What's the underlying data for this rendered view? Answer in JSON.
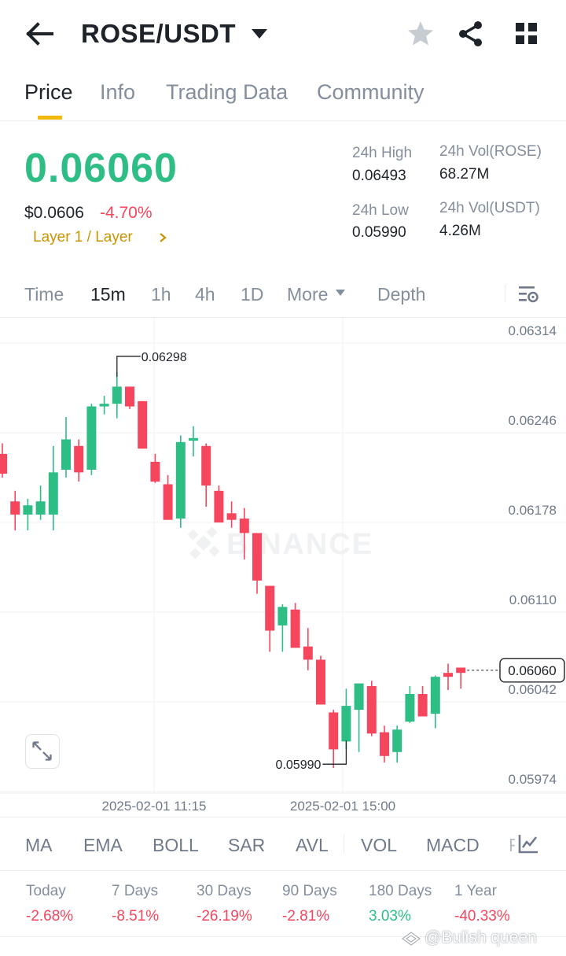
{
  "header": {
    "pair": "ROSE/USDT",
    "icons": [
      "back-arrow-icon",
      "caret-down-icon",
      "star-icon",
      "share-icon",
      "grid-icon"
    ]
  },
  "tabs": [
    "Price",
    "Info",
    "Trading Data",
    "Community"
  ],
  "active_tab": "Price",
  "summary": {
    "last_price": "0.06060",
    "usd_price": "$0.0606",
    "change_pct": "-4.70%",
    "category": "Layer 1 / Layer",
    "high_label": "24h High",
    "high_value": "0.06493",
    "low_label": "24h Low",
    "low_value": "0.05990",
    "vol_base_label": "24h Vol(ROSE)",
    "vol_base_value": "68.27M",
    "vol_quote_label": "24h Vol(USDT)",
    "vol_quote_value": "4.26M"
  },
  "intervals": [
    "Time",
    "15m",
    "1h",
    "4h",
    "1D",
    "More",
    "Depth"
  ],
  "active_interval": "15m",
  "chart": {
    "watermark": "BINANCE",
    "price_labels": [
      "0.06314",
      "0.06246",
      "0.06178",
      "0.06110",
      "0.06042",
      "0.05974"
    ],
    "time_labels": [
      "2025-02-01 11:15",
      "2025-02-01 15:00"
    ],
    "current_price_tag": "0.06060",
    "high_marker": "0.06298",
    "low_marker": "0.05990"
  },
  "chart_data": {
    "type": "candlestick",
    "interval": "15m",
    "y_range": [
      0.0595,
      0.0634
    ],
    "y_ticks": [
      0.06314,
      0.06246,
      0.06178,
      0.0611,
      0.06042,
      0.05974
    ],
    "x_ticks": [
      "2025-02-01 11:15",
      "2025-02-01 15:00"
    ],
    "current_price": 0.0606,
    "annotated_high": 0.06298,
    "annotated_low": 0.0599,
    "candles": [
      {
        "o": 0.06224,
        "h": 0.06232,
        "c": 0.06209,
        "l": 0.06206
      },
      {
        "o": 0.06188,
        "h": 0.06196,
        "c": 0.06178,
        "l": 0.06166
      },
      {
        "o": 0.06178,
        "h": 0.0619,
        "c": 0.06185,
        "l": 0.06166
      },
      {
        "o": 0.06178,
        "h": 0.062,
        "c": 0.06188,
        "l": 0.06174
      },
      {
        "o": 0.06178,
        "h": 0.0623,
        "c": 0.0621,
        "l": 0.06166
      },
      {
        "o": 0.06212,
        "h": 0.06252,
        "c": 0.06235,
        "l": 0.06206
      },
      {
        "o": 0.0623,
        "h": 0.06235,
        "c": 0.0621,
        "l": 0.06203
      },
      {
        "o": 0.06212,
        "h": 0.06262,
        "c": 0.0626,
        "l": 0.06208
      },
      {
        "o": 0.0626,
        "h": 0.06268,
        "c": 0.06262,
        "l": 0.06254
      },
      {
        "o": 0.06262,
        "h": 0.06286,
        "c": 0.06275,
        "l": 0.06251
      },
      {
        "o": 0.06275,
        "h": 0.06275,
        "c": 0.0626,
        "l": 0.06258
      },
      {
        "o": 0.06264,
        "h": 0.06264,
        "c": 0.06228,
        "l": 0.06228
      },
      {
        "o": 0.06218,
        "h": 0.06224,
        "c": 0.06203,
        "l": 0.06202
      },
      {
        "o": 0.06201,
        "h": 0.06208,
        "c": 0.06174,
        "l": 0.06174
      },
      {
        "o": 0.06175,
        "h": 0.06238,
        "c": 0.06233,
        "l": 0.06168
      },
      {
        "o": 0.06234,
        "h": 0.06245,
        "c": 0.06236,
        "l": 0.06222
      },
      {
        "o": 0.0623,
        "h": 0.06232,
        "c": 0.062,
        "l": 0.06184
      },
      {
        "o": 0.06196,
        "h": 0.062,
        "c": 0.06172,
        "l": 0.06172
      },
      {
        "o": 0.06179,
        "h": 0.06188,
        "c": 0.06174,
        "l": 0.06168
      },
      {
        "o": 0.06175,
        "h": 0.06183,
        "c": 0.06164,
        "l": 0.06144
      },
      {
        "o": 0.06164,
        "h": 0.06164,
        "c": 0.06128,
        "l": 0.06118
      },
      {
        "o": 0.06124,
        "h": 0.06124,
        "c": 0.0609,
        "l": 0.06074
      },
      {
        "o": 0.06094,
        "h": 0.0611,
        "c": 0.06108,
        "l": 0.06074
      },
      {
        "o": 0.06106,
        "h": 0.06111,
        "c": 0.06077,
        "l": 0.06077
      },
      {
        "o": 0.06078,
        "h": 0.06092,
        "c": 0.06068,
        "l": 0.0606
      },
      {
        "o": 0.06068,
        "h": 0.06071,
        "c": 0.06034,
        "l": 0.06034
      },
      {
        "o": 0.06028,
        "h": 0.0603,
        "c": 0.06,
        "l": 0.05986
      },
      {
        "o": 0.06006,
        "h": 0.06046,
        "c": 0.06033,
        "l": 0.06
      },
      {
        "o": 0.0603,
        "h": 0.0605,
        "c": 0.0605,
        "l": 0.05998
      },
      {
        "o": 0.06048,
        "h": 0.06052,
        "c": 0.06012,
        "l": 0.0601
      },
      {
        "o": 0.06013,
        "h": 0.06018,
        "c": 0.05995,
        "l": 0.0599
      },
      {
        "o": 0.05998,
        "h": 0.06018,
        "c": 0.06015,
        "l": 0.0599
      },
      {
        "o": 0.06021,
        "h": 0.06048,
        "c": 0.06042,
        "l": 0.0602
      },
      {
        "o": 0.06042,
        "h": 0.06048,
        "c": 0.06025,
        "l": 0.06025
      },
      {
        "o": 0.06027,
        "h": 0.06056,
        "c": 0.06055,
        "l": 0.06016
      },
      {
        "o": 0.06058,
        "h": 0.06065,
        "c": 0.06055,
        "l": 0.06045
      },
      {
        "o": 0.06062,
        "h": 0.06062,
        "c": 0.06058,
        "l": 0.06046
      }
    ]
  },
  "indicators": [
    "MA",
    "EMA",
    "BOLL",
    "SAR",
    "AVL",
    "VOL",
    "MACD",
    "R"
  ],
  "performance": [
    {
      "label": "Today",
      "value": "-2.68%"
    },
    {
      "label": "7 Days",
      "value": "-8.51%"
    },
    {
      "label": "30 Days",
      "value": "-26.19%"
    },
    {
      "label": "90 Days",
      "value": "-2.81%"
    },
    {
      "label": "180 Days",
      "value": "3.03%"
    },
    {
      "label": "1 Year",
      "value": "-40.33%"
    }
  ],
  "colors": {
    "up": "#2ebd85",
    "down": "#f6465d",
    "accent": "#f0b90b",
    "category": "#c99400",
    "muted": "#848e9c"
  },
  "credit": "@Bulish queen"
}
